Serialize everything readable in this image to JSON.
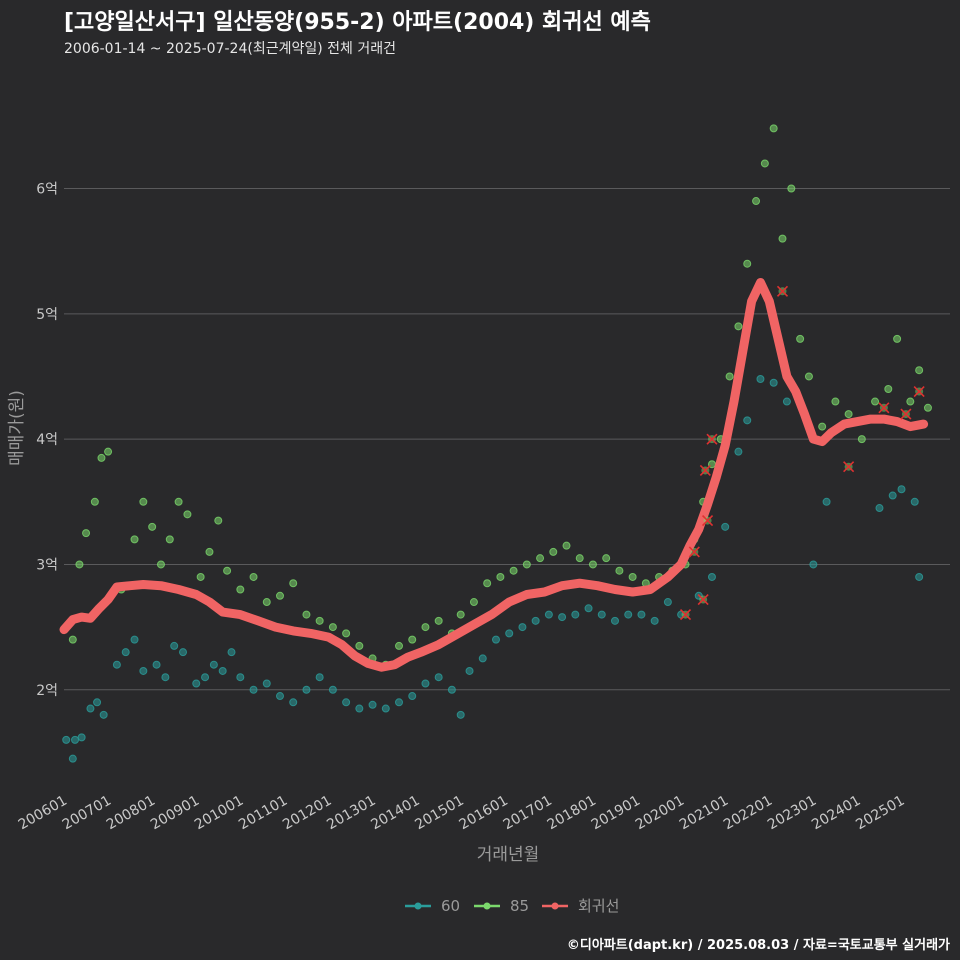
{
  "header": {
    "title": "[고양일산서구] 일산동양(955-2) 아파트(2004) 회귀선 예측",
    "subtitle": "2006-01-14 ~ 2025-07-24(최근계약일) 전체 거래건"
  },
  "footer": {
    "caption": "©디아파트(dapt.kr) / 2025.08.03 / 자료=국토교통부 실거래가"
  },
  "colors": {
    "background": "#29292b",
    "grid": "#5a5a5c",
    "series_60": "#2a9d9b",
    "series_85": "#7bd86c",
    "regression": "#f06464",
    "marker_x": "#e03030",
    "axis_text": "#c8c8c8"
  },
  "chart_data": {
    "type": "scatter",
    "title": "[고양일산서구] 일산동양(955-2) 아파트(2004) 회귀선 예측",
    "xlabel": "거래년월",
    "ylabel": "매매가(원)",
    "xlim": [
      2006.0,
      2026.1
    ],
    "ylim": [
      1.2,
      6.85
    ],
    "yticks": [
      2,
      3,
      4,
      5,
      6
    ],
    "ytick_labels": [
      "2억",
      "3억",
      "4억",
      "5억",
      "6억"
    ],
    "xticks": [
      2006,
      2007,
      2008,
      2009,
      2010,
      2011,
      2012,
      2013,
      2014,
      2015,
      2016,
      2017,
      2018,
      2019,
      2020,
      2021,
      2022,
      2023,
      2024,
      2025
    ],
    "xtick_labels": [
      "200601",
      "200701",
      "200801",
      "200901",
      "201001",
      "201101",
      "201201",
      "201301",
      "201401",
      "201501",
      "201601",
      "201701",
      "201801",
      "201901",
      "202001",
      "202101",
      "202201",
      "202301",
      "202401",
      "202501"
    ],
    "grid": "horizontal",
    "legend_position": "bottom",
    "legend": [
      "60",
      "85",
      "회귀선"
    ],
    "series": [
      {
        "name": "60",
        "kind": "points",
        "points": [
          [
            2006.05,
            1.6
          ],
          [
            2006.2,
            1.45
          ],
          [
            2006.25,
            1.6
          ],
          [
            2006.4,
            1.62
          ],
          [
            2006.6,
            1.85
          ],
          [
            2006.75,
            1.9
          ],
          [
            2006.9,
            1.8
          ],
          [
            2007.2,
            2.2
          ],
          [
            2007.4,
            2.3
          ],
          [
            2007.6,
            2.4
          ],
          [
            2007.8,
            2.15
          ],
          [
            2008.1,
            2.2
          ],
          [
            2008.3,
            2.1
          ],
          [
            2008.5,
            2.35
          ],
          [
            2008.7,
            2.3
          ],
          [
            2009.0,
            2.05
          ],
          [
            2009.2,
            2.1
          ],
          [
            2009.4,
            2.2
          ],
          [
            2009.6,
            2.15
          ],
          [
            2009.8,
            2.3
          ],
          [
            2010.0,
            2.1
          ],
          [
            2010.3,
            2.0
          ],
          [
            2010.6,
            2.05
          ],
          [
            2010.9,
            1.95
          ],
          [
            2011.2,
            1.9
          ],
          [
            2011.5,
            2.0
          ],
          [
            2011.8,
            2.1
          ],
          [
            2012.1,
            2.0
          ],
          [
            2012.4,
            1.9
          ],
          [
            2012.7,
            1.85
          ],
          [
            2013.0,
            1.88
          ],
          [
            2013.3,
            1.85
          ],
          [
            2013.6,
            1.9
          ],
          [
            2013.9,
            1.95
          ],
          [
            2014.2,
            2.05
          ],
          [
            2014.5,
            2.1
          ],
          [
            2014.8,
            2.0
          ],
          [
            2015.0,
            1.8
          ],
          [
            2015.2,
            2.15
          ],
          [
            2015.5,
            2.25
          ],
          [
            2015.8,
            2.4
          ],
          [
            2016.1,
            2.45
          ],
          [
            2016.4,
            2.5
          ],
          [
            2016.7,
            2.55
          ],
          [
            2017.0,
            2.6
          ],
          [
            2017.3,
            2.58
          ],
          [
            2017.6,
            2.6
          ],
          [
            2017.9,
            2.65
          ],
          [
            2018.2,
            2.6
          ],
          [
            2018.5,
            2.55
          ],
          [
            2018.8,
            2.6
          ],
          [
            2019.1,
            2.6
          ],
          [
            2019.4,
            2.55
          ],
          [
            2019.7,
            2.7
          ],
          [
            2020.0,
            2.6
          ],
          [
            2020.4,
            2.75
          ],
          [
            2020.7,
            2.9
          ],
          [
            2021.0,
            3.3
          ],
          [
            2021.3,
            3.9
          ],
          [
            2021.5,
            4.15
          ],
          [
            2021.8,
            4.48
          ],
          [
            2022.1,
            4.45
          ],
          [
            2022.4,
            4.3
          ],
          [
            2023.0,
            3.0
          ],
          [
            2023.3,
            3.5
          ],
          [
            2024.5,
            3.45
          ],
          [
            2024.8,
            3.55
          ],
          [
            2025.0,
            3.6
          ],
          [
            2025.3,
            3.5
          ],
          [
            2025.4,
            2.9
          ]
        ]
      },
      {
        "name": "85",
        "kind": "points",
        "points": [
          [
            2006.2,
            2.4
          ],
          [
            2006.35,
            3.0
          ],
          [
            2006.5,
            3.25
          ],
          [
            2006.7,
            3.5
          ],
          [
            2006.85,
            3.85
          ],
          [
            2007.0,
            3.9
          ],
          [
            2007.3,
            2.8
          ],
          [
            2007.6,
            3.2
          ],
          [
            2007.8,
            3.5
          ],
          [
            2008.0,
            3.3
          ],
          [
            2008.2,
            3.0
          ],
          [
            2008.4,
            3.2
          ],
          [
            2008.6,
            3.5
          ],
          [
            2008.8,
            3.4
          ],
          [
            2009.1,
            2.9
          ],
          [
            2009.3,
            3.1
          ],
          [
            2009.5,
            3.35
          ],
          [
            2009.7,
            2.95
          ],
          [
            2010.0,
            2.8
          ],
          [
            2010.3,
            2.9
          ],
          [
            2010.6,
            2.7
          ],
          [
            2010.9,
            2.75
          ],
          [
            2011.2,
            2.85
          ],
          [
            2011.5,
            2.6
          ],
          [
            2011.8,
            2.55
          ],
          [
            2012.1,
            2.5
          ],
          [
            2012.4,
            2.45
          ],
          [
            2012.7,
            2.35
          ],
          [
            2013.0,
            2.25
          ],
          [
            2013.3,
            2.2
          ],
          [
            2013.6,
            2.35
          ],
          [
            2013.9,
            2.4
          ],
          [
            2014.2,
            2.5
          ],
          [
            2014.5,
            2.55
          ],
          [
            2014.8,
            2.45
          ],
          [
            2015.0,
            2.6
          ],
          [
            2015.3,
            2.7
          ],
          [
            2015.6,
            2.85
          ],
          [
            2015.9,
            2.9
          ],
          [
            2016.2,
            2.95
          ],
          [
            2016.5,
            3.0
          ],
          [
            2016.8,
            3.05
          ],
          [
            2017.1,
            3.1
          ],
          [
            2017.4,
            3.15
          ],
          [
            2017.7,
            3.05
          ],
          [
            2018.0,
            3.0
          ],
          [
            2018.3,
            3.05
          ],
          [
            2018.6,
            2.95
          ],
          [
            2018.9,
            2.9
          ],
          [
            2019.2,
            2.85
          ],
          [
            2019.5,
            2.9
          ],
          [
            2019.8,
            2.95
          ],
          [
            2020.1,
            3.0
          ],
          [
            2020.3,
            3.2
          ],
          [
            2020.5,
            3.5
          ],
          [
            2020.7,
            3.8
          ],
          [
            2020.9,
            4.0
          ],
          [
            2021.1,
            4.5
          ],
          [
            2021.3,
            4.9
          ],
          [
            2021.5,
            5.4
          ],
          [
            2021.7,
            5.9
          ],
          [
            2021.9,
            6.2
          ],
          [
            2022.1,
            6.48
          ],
          [
            2022.3,
            5.6
          ],
          [
            2022.5,
            6.0
          ],
          [
            2022.7,
            4.8
          ],
          [
            2022.9,
            4.5
          ],
          [
            2023.2,
            4.1
          ],
          [
            2023.5,
            4.3
          ],
          [
            2023.8,
            4.2
          ],
          [
            2024.1,
            4.0
          ],
          [
            2024.4,
            4.3
          ],
          [
            2024.7,
            4.4
          ],
          [
            2024.9,
            4.8
          ],
          [
            2025.2,
            4.3
          ],
          [
            2025.4,
            4.55
          ],
          [
            2025.6,
            4.25
          ]
        ]
      },
      {
        "name": "회귀선",
        "kind": "line",
        "points": [
          [
            2006.0,
            2.48
          ],
          [
            2006.2,
            2.56
          ],
          [
            2006.4,
            2.58
          ],
          [
            2006.6,
            2.57
          ],
          [
            2006.8,
            2.65
          ],
          [
            2007.0,
            2.72
          ],
          [
            2007.2,
            2.82
          ],
          [
            2007.5,
            2.83
          ],
          [
            2007.8,
            2.84
          ],
          [
            2008.2,
            2.83
          ],
          [
            2008.6,
            2.8
          ],
          [
            2009.0,
            2.76
          ],
          [
            2009.3,
            2.7
          ],
          [
            2009.6,
            2.62
          ],
          [
            2010.0,
            2.6
          ],
          [
            2010.4,
            2.55
          ],
          [
            2010.8,
            2.5
          ],
          [
            2011.2,
            2.47
          ],
          [
            2011.6,
            2.45
          ],
          [
            2012.0,
            2.42
          ],
          [
            2012.3,
            2.36
          ],
          [
            2012.6,
            2.27
          ],
          [
            2012.9,
            2.21
          ],
          [
            2013.2,
            2.18
          ],
          [
            2013.5,
            2.2
          ],
          [
            2013.8,
            2.26
          ],
          [
            2014.1,
            2.3
          ],
          [
            2014.5,
            2.36
          ],
          [
            2014.9,
            2.44
          ],
          [
            2015.3,
            2.52
          ],
          [
            2015.7,
            2.6
          ],
          [
            2016.1,
            2.7
          ],
          [
            2016.5,
            2.76
          ],
          [
            2016.9,
            2.78
          ],
          [
            2017.3,
            2.83
          ],
          [
            2017.7,
            2.85
          ],
          [
            2018.1,
            2.83
          ],
          [
            2018.5,
            2.8
          ],
          [
            2018.9,
            2.78
          ],
          [
            2019.3,
            2.8
          ],
          [
            2019.7,
            2.9
          ],
          [
            2020.0,
            3.0
          ],
          [
            2020.2,
            3.15
          ],
          [
            2020.4,
            3.28
          ],
          [
            2020.6,
            3.48
          ],
          [
            2020.8,
            3.7
          ],
          [
            2021.0,
            3.95
          ],
          [
            2021.2,
            4.3
          ],
          [
            2021.4,
            4.7
          ],
          [
            2021.6,
            5.1
          ],
          [
            2021.8,
            5.25
          ],
          [
            2022.0,
            5.1
          ],
          [
            2022.2,
            4.8
          ],
          [
            2022.4,
            4.5
          ],
          [
            2022.6,
            4.38
          ],
          [
            2022.8,
            4.2
          ],
          [
            2023.0,
            4.0
          ],
          [
            2023.2,
            3.98
          ],
          [
            2023.4,
            4.05
          ],
          [
            2023.7,
            4.12
          ],
          [
            2024.0,
            4.14
          ],
          [
            2024.3,
            4.16
          ],
          [
            2024.6,
            4.16
          ],
          [
            2024.9,
            4.14
          ],
          [
            2025.2,
            4.1
          ],
          [
            2025.5,
            4.12
          ]
        ]
      }
    ],
    "x_markers": [
      [
        2020.1,
        2.6
      ],
      [
        2020.3,
        3.1
      ],
      [
        2020.6,
        3.35
      ],
      [
        2020.55,
        3.75
      ],
      [
        2020.5,
        2.72
      ],
      [
        2020.7,
        4.0
      ],
      [
        2022.3,
        5.18
      ],
      [
        2023.8,
        3.78
      ],
      [
        2024.6,
        4.25
      ],
      [
        2025.1,
        4.2
      ],
      [
        2025.4,
        4.38
      ]
    ]
  }
}
